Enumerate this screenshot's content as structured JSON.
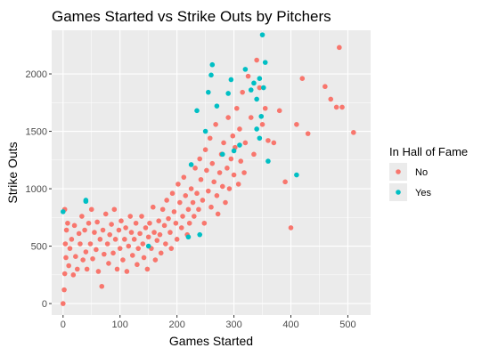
{
  "chart_data": {
    "type": "scatter",
    "title": "Games Started vs Strike Outs by Pitchers",
    "xlabel": "Games Started",
    "ylabel": "Strike Outs",
    "xlim": [
      -20,
      540
    ],
    "ylim": [
      -100,
      2380
    ],
    "x_ticks": [
      0,
      100,
      200,
      300,
      400,
      500
    ],
    "y_ticks": [
      0,
      500,
      1000,
      1500,
      2000
    ],
    "x_tick_labels": [
      "0",
      "100",
      "200",
      "300",
      "400",
      "500"
    ],
    "y_tick_labels": [
      "0",
      "500",
      "1000",
      "1500",
      "2000"
    ],
    "grid": true,
    "legend": {
      "title": "In Hall of Fame",
      "position": "right"
    },
    "series": [
      {
        "name": "No",
        "color": "#F8766D",
        "points": [
          [
            0,
            0
          ],
          [
            2,
            120
          ],
          [
            3,
            260
          ],
          [
            5,
            400
          ],
          [
            4,
            520
          ],
          [
            6,
            640
          ],
          [
            8,
            700
          ],
          [
            3,
            820
          ],
          [
            10,
            330
          ],
          [
            12,
            480
          ],
          [
            15,
            560
          ],
          [
            18,
            250
          ],
          [
            20,
            680
          ],
          [
            22,
            410
          ],
          [
            25,
            300
          ],
          [
            28,
            610
          ],
          [
            30,
            520
          ],
          [
            33,
            760
          ],
          [
            35,
            380
          ],
          [
            38,
            640
          ],
          [
            40,
            450
          ],
          [
            42,
            300
          ],
          [
            45,
            700
          ],
          [
            48,
            520
          ],
          [
            50,
            820
          ],
          [
            52,
            390
          ],
          [
            55,
            620
          ],
          [
            58,
            470
          ],
          [
            60,
            710
          ],
          [
            62,
            280
          ],
          [
            65,
            560
          ],
          [
            68,
            150
          ],
          [
            70,
            640
          ],
          [
            72,
            430
          ],
          [
            75,
            780
          ],
          [
            78,
            520
          ],
          [
            80,
            350
          ],
          [
            82,
            600
          ],
          [
            85,
            690
          ],
          [
            88,
            440
          ],
          [
            90,
            820
          ],
          [
            92,
            560
          ],
          [
            95,
            300
          ],
          [
            98,
            640
          ],
          [
            100,
            480
          ],
          [
            102,
            720
          ],
          [
            105,
            380
          ],
          [
            108,
            560
          ],
          [
            110,
            660
          ],
          [
            112,
            280
          ],
          [
            115,
            500
          ],
          [
            118,
            760
          ],
          [
            120,
            620
          ],
          [
            122,
            420
          ],
          [
            125,
            560
          ],
          [
            128,
            700
          ],
          [
            130,
            340
          ],
          [
            132,
            480
          ],
          [
            135,
            610
          ],
          [
            138,
            760
          ],
          [
            140,
            520
          ],
          [
            142,
            400
          ],
          [
            145,
            660
          ],
          [
            148,
            300
          ],
          [
            150,
            580
          ],
          [
            152,
            700
          ],
          [
            155,
            480
          ],
          [
            158,
            840
          ],
          [
            160,
            620
          ],
          [
            162,
            380
          ],
          [
            165,
            550
          ],
          [
            168,
            720
          ],
          [
            170,
            600
          ],
          [
            172,
            440
          ],
          [
            175,
            820
          ],
          [
            178,
            680
          ],
          [
            180,
            520
          ],
          [
            182,
            900
          ],
          [
            185,
            740
          ],
          [
            188,
            620
          ],
          [
            190,
            480
          ],
          [
            192,
            960
          ],
          [
            195,
            800
          ],
          [
            198,
            700
          ],
          [
            200,
            560
          ],
          [
            202,
            1040
          ],
          [
            205,
            880
          ],
          [
            208,
            660
          ],
          [
            210,
            760
          ],
          [
            212,
            1100
          ],
          [
            215,
            940
          ],
          [
            218,
            600
          ],
          [
            220,
            820
          ],
          [
            222,
            700
          ],
          [
            225,
            1000
          ],
          [
            228,
            880
          ],
          [
            230,
            760
          ],
          [
            232,
            1180
          ],
          [
            235,
            960
          ],
          [
            238,
            820
          ],
          [
            240,
            1260
          ],
          [
            242,
            1080
          ],
          [
            245,
            900
          ],
          [
            248,
            700
          ],
          [
            250,
            1340
          ],
          [
            252,
            1160
          ],
          [
            255,
            980
          ],
          [
            258,
            1440
          ],
          [
            260,
            840
          ],
          [
            262,
            1220
          ],
          [
            265,
            1060
          ],
          [
            268,
            1560
          ],
          [
            270,
            940
          ],
          [
            272,
            780
          ],
          [
            275,
            1140
          ],
          [
            278,
            1300
          ],
          [
            280,
            1020
          ],
          [
            282,
            1400
          ],
          [
            285,
            880
          ],
          [
            288,
            1180
          ],
          [
            290,
            1620
          ],
          [
            292,
            1000
          ],
          [
            295,
            1260
          ],
          [
            298,
            1460
          ],
          [
            300,
            1120
          ],
          [
            302,
            1360
          ],
          [
            305,
            1700
          ],
          [
            308,
            1040
          ],
          [
            310,
            1520
          ],
          [
            312,
            1240
          ],
          [
            315,
            1840
          ],
          [
            318,
            1140
          ],
          [
            320,
            1400
          ],
          [
            325,
            1980
          ],
          [
            330,
            1620
          ],
          [
            335,
            1300
          ],
          [
            340,
            2120
          ],
          [
            345,
            1880
          ],
          [
            350,
            1560
          ],
          [
            355,
            1700
          ],
          [
            360,
            1420
          ],
          [
            370,
            1400
          ],
          [
            380,
            1680
          ],
          [
            390,
            1060
          ],
          [
            400,
            660
          ],
          [
            410,
            1560
          ],
          [
            420,
            1960
          ],
          [
            430,
            1480
          ],
          [
            460,
            1890
          ],
          [
            470,
            1780
          ],
          [
            480,
            1710
          ],
          [
            485,
            2230
          ],
          [
            490,
            1710
          ],
          [
            510,
            1490
          ]
        ]
      },
      {
        "name": "Yes",
        "color": "#00BFC4",
        "points": [
          [
            0,
            800
          ],
          [
            40,
            890
          ],
          [
            40,
            900
          ],
          [
            150,
            500
          ],
          [
            220,
            580
          ],
          [
            240,
            600
          ],
          [
            225,
            1210
          ],
          [
            235,
            1680
          ],
          [
            250,
            1500
          ],
          [
            255,
            1840
          ],
          [
            260,
            1990
          ],
          [
            262,
            2080
          ],
          [
            270,
            1720
          ],
          [
            280,
            1300
          ],
          [
            290,
            1830
          ],
          [
            295,
            1950
          ],
          [
            300,
            1330
          ],
          [
            310,
            1380
          ],
          [
            320,
            2040
          ],
          [
            330,
            1860
          ],
          [
            335,
            1920
          ],
          [
            340,
            1780
          ],
          [
            345,
            1960
          ],
          [
            348,
            1630
          ],
          [
            350,
            2340
          ],
          [
            352,
            1880
          ],
          [
            355,
            2100
          ],
          [
            340,
            1520
          ],
          [
            345,
            1440
          ],
          [
            360,
            1240
          ],
          [
            410,
            1120
          ]
        ]
      }
    ]
  }
}
